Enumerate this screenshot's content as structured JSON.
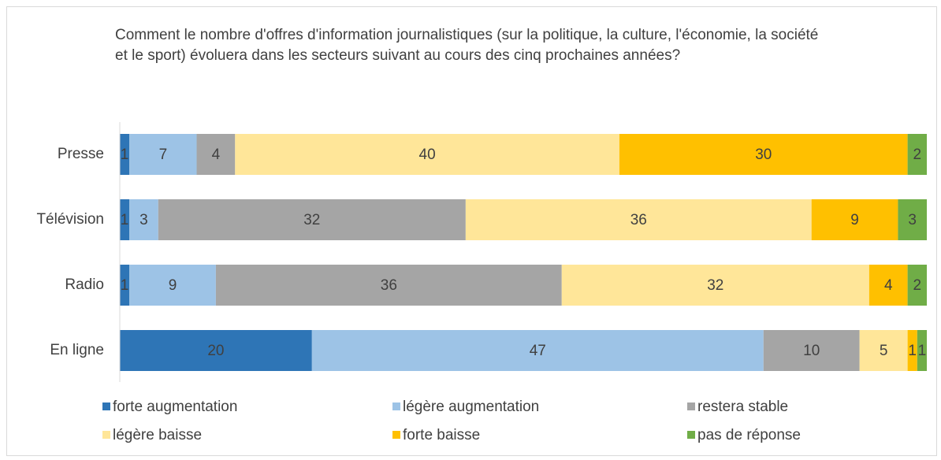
{
  "chart_data": {
    "type": "stacked-bar-horizontal",
    "title": "Comment le nombre d'offres d'information journalistiques (sur la politique, la culture, l'économie, la société et le sport) évoluera dans les secteurs suivant au cours des cinq prochaines années?",
    "categories": [
      "Presse",
      "Télévision",
      "Radio",
      "En ligne"
    ],
    "series": [
      {
        "name": "forte augmentation",
        "color": "#2e75b6",
        "values": [
          1,
          1,
          1,
          20
        ]
      },
      {
        "name": "légère augmentation",
        "color": "#9dc3e6",
        "values": [
          7,
          3,
          9,
          47
        ]
      },
      {
        "name": "restera stable",
        "color": "#a5a5a5",
        "values": [
          4,
          32,
          36,
          10
        ]
      },
      {
        "name": "légère baisse",
        "color": "#ffe699",
        "values": [
          40,
          36,
          32,
          5
        ]
      },
      {
        "name": "forte baisse",
        "color": "#ffc000",
        "values": [
          30,
          9,
          4,
          1
        ]
      },
      {
        "name": "pas de réponse",
        "color": "#70ad47",
        "values": [
          2,
          3,
          2,
          1
        ]
      }
    ],
    "xlim": [
      0,
      84
    ],
    "legend": "bottom"
  }
}
